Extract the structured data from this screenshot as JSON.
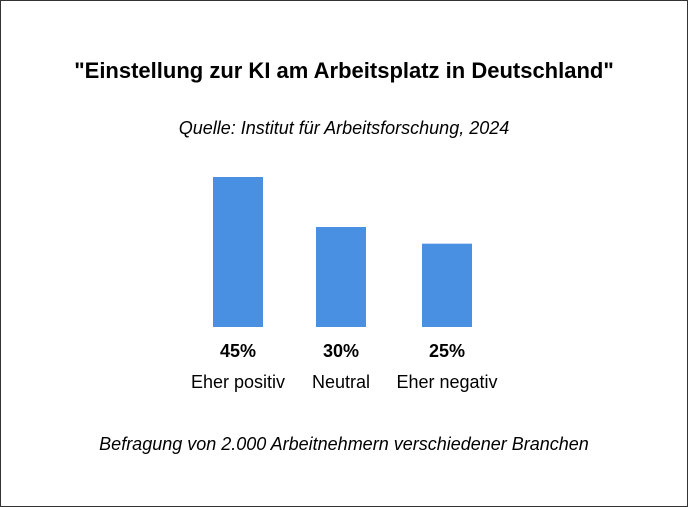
{
  "chart_data": {
    "type": "bar",
    "title": "\"Einstellung zur KI am Arbeitsplatz in Deutschland\"",
    "subtitle": "Quelle: Institut für Arbeitsforschung, 2024",
    "footnote": "Befragung von 2.000 Arbeitnehmern verschiedener Branchen",
    "categories": [
      "Eher positiv",
      "Neutral",
      "Eher negativ"
    ],
    "values": [
      45,
      30,
      25
    ],
    "value_labels": [
      "45%",
      "30%",
      "25%"
    ],
    "unit": "%",
    "bar_color": "#4a90e2",
    "ylim": [
      0,
      45
    ],
    "grid": false,
    "legend": "none"
  }
}
